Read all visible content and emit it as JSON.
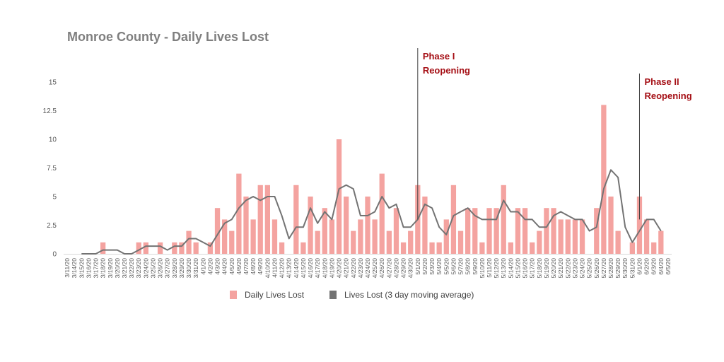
{
  "chart_data": {
    "type": "bar",
    "title": "Monroe County - Daily Lives Lost",
    "xlabel": "",
    "ylabel": "",
    "ylim": [
      0,
      15
    ],
    "yticks": [
      "0",
      "2.5",
      "5",
      "7.5",
      "10",
      "12.5",
      "15"
    ],
    "grid": false,
    "legend_position": "bottom",
    "categories": [
      "3/11/20",
      "3/14/20",
      "3/15/20",
      "3/16/20",
      "3/17/20",
      "3/18/20",
      "3/19/20",
      "3/20/20",
      "3/21/20",
      "3/22/20",
      "3/23/20",
      "3/24/20",
      "3/25/20",
      "3/26/20",
      "3/27/20",
      "3/28/20",
      "3/29/20",
      "3/30/20",
      "3/31/20",
      "4/1/20",
      "4/2/20",
      "4/3/20",
      "4/4/20",
      "4/5/20",
      "4/6/20",
      "4/7/20",
      "4/8/20",
      "4/9/20",
      "4/10/20",
      "4/11/20",
      "4/12/20",
      "4/13/20",
      "4/14/20",
      "4/15/20",
      "4/16/20",
      "4/17/20",
      "4/18/20",
      "4/19/20",
      "4/20/20",
      "4/21/20",
      "4/22/20",
      "4/23/20",
      "4/24/20",
      "4/25/20",
      "4/26/20",
      "4/27/20",
      "4/28/20",
      "4/29/20",
      "4/30/20",
      "5/1/20",
      "5/2/20",
      "5/3/20",
      "5/4/20",
      "5/5/20",
      "5/6/20",
      "5/7/20",
      "5/8/20",
      "5/9/20",
      "5/10/20",
      "5/11/20",
      "5/12/20",
      "5/13/20",
      "5/14/20",
      "5/15/20",
      "5/16/20",
      "5/17/20",
      "5/18/20",
      "5/19/20",
      "5/20/20",
      "5/21/20",
      "5/22/20",
      "5/23/20",
      "5/24/20",
      "5/25/20",
      "5/26/20",
      "5/27/20",
      "5/28/20",
      "5/29/20",
      "5/30/20",
      "5/31/20",
      "6/1/20",
      "6/2/20",
      "6/3/20",
      "6/4/20",
      "6/5/20"
    ],
    "series": [
      {
        "name": "Daily Lives Lost",
        "type": "bar",
        "color": "#f4a3a0",
        "values": [
          0,
          0,
          0,
          0,
          0,
          1,
          0,
          0,
          0,
          0,
          1,
          1,
          0,
          1,
          0,
          1,
          1,
          2,
          1,
          0,
          1,
          4,
          3,
          2,
          7,
          5,
          3,
          6,
          6,
          3,
          1,
          0,
          6,
          1,
          5,
          2,
          4,
          3,
          10,
          5,
          2,
          3,
          5,
          3,
          7,
          2,
          4,
          1,
          2,
          6,
          5,
          1,
          1,
          3,
          6,
          2,
          4,
          4,
          1,
          4,
          4,
          6,
          1,
          4,
          4,
          1,
          2,
          4,
          4,
          3,
          3,
          3,
          3,
          0,
          4,
          13,
          5,
          2,
          0,
          1,
          5,
          3,
          1,
          2,
          0
        ]
      },
      {
        "name": "Lives Lost (3 day moving average)",
        "type": "line",
        "color": "#737373",
        "values": [
          null,
          null,
          0,
          0,
          0,
          0.33,
          0.33,
          0.33,
          0,
          0,
          0.33,
          0.67,
          0.67,
          0.67,
          0.33,
          0.67,
          0.67,
          1.33,
          1.33,
          1,
          0.67,
          1.67,
          2.67,
          3,
          4,
          4.67,
          5,
          4.67,
          5,
          5,
          3.33,
          1.33,
          2.33,
          2.33,
          4,
          2.67,
          3.67,
          3,
          5.67,
          6,
          5.67,
          3.33,
          3.33,
          3.67,
          5,
          4,
          4.33,
          2.33,
          2.33,
          3,
          4.33,
          4,
          2.33,
          1.67,
          3.33,
          3.67,
          4,
          3.33,
          3,
          3,
          3,
          4.67,
          3.67,
          3.67,
          3,
          3,
          2.33,
          2.33,
          3.33,
          3.67,
          3.33,
          3,
          3,
          2,
          2.33,
          5.67,
          7.33,
          6.67,
          2.33,
          1,
          2,
          3,
          3,
          2,
          null
        ]
      }
    ],
    "annotations": [
      {
        "lines": [
          "Phase I",
          "Reopening"
        ],
        "at_category": "5/1/20"
      },
      {
        "lines": [
          "Phase II",
          "Reopening"
        ],
        "at_category": "6/1/20"
      }
    ]
  }
}
